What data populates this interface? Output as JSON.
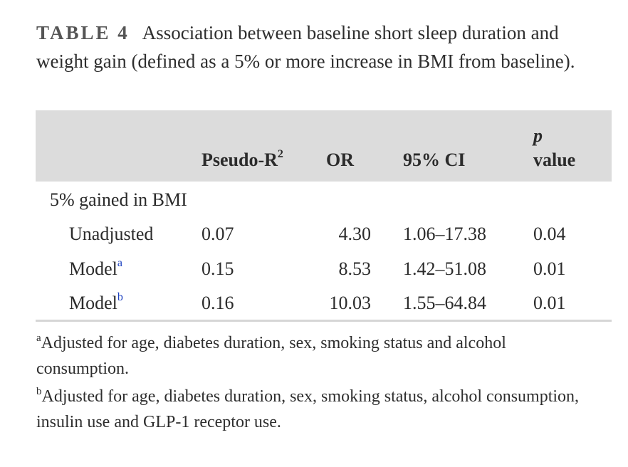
{
  "caption": {
    "label": "TABLE 4",
    "text": "Association between baseline short sleep duration and weight gain (defined as a 5% or more increase in BMI from baseline)."
  },
  "table": {
    "headers": {
      "col1": "",
      "pseudo_r2": "Pseudo-R",
      "pseudo_r2_sup": "2",
      "or": "OR",
      "ci": "95% CI",
      "p_line1": "p",
      "p_line2": "value"
    },
    "group_label": "5% gained in BMI",
    "rows": [
      {
        "label": "Unadjusted",
        "sup": "",
        "pseudo_r2": "0.07",
        "or": "4.30",
        "ci": "1.06–17.38",
        "p": "0.04"
      },
      {
        "label": "Model",
        "sup": "a",
        "pseudo_r2": "0.15",
        "or": "8.53",
        "ci": "1.42–51.08",
        "p": "0.01"
      },
      {
        "label": "Model",
        "sup": "b",
        "pseudo_r2": "0.16",
        "or": "10.03",
        "ci": "1.55–64.84",
        "p": "0.01"
      }
    ]
  },
  "footnotes": [
    {
      "mark": "a",
      "text": "Adjusted for age, diabetes duration, sex, smoking status and alcohol consumption."
    },
    {
      "mark": "b",
      "text": "Adjusted for age, diabetes duration, sex, smoking status, alcohol consumption, insulin use and GLP-1 receptor use."
    }
  ]
}
